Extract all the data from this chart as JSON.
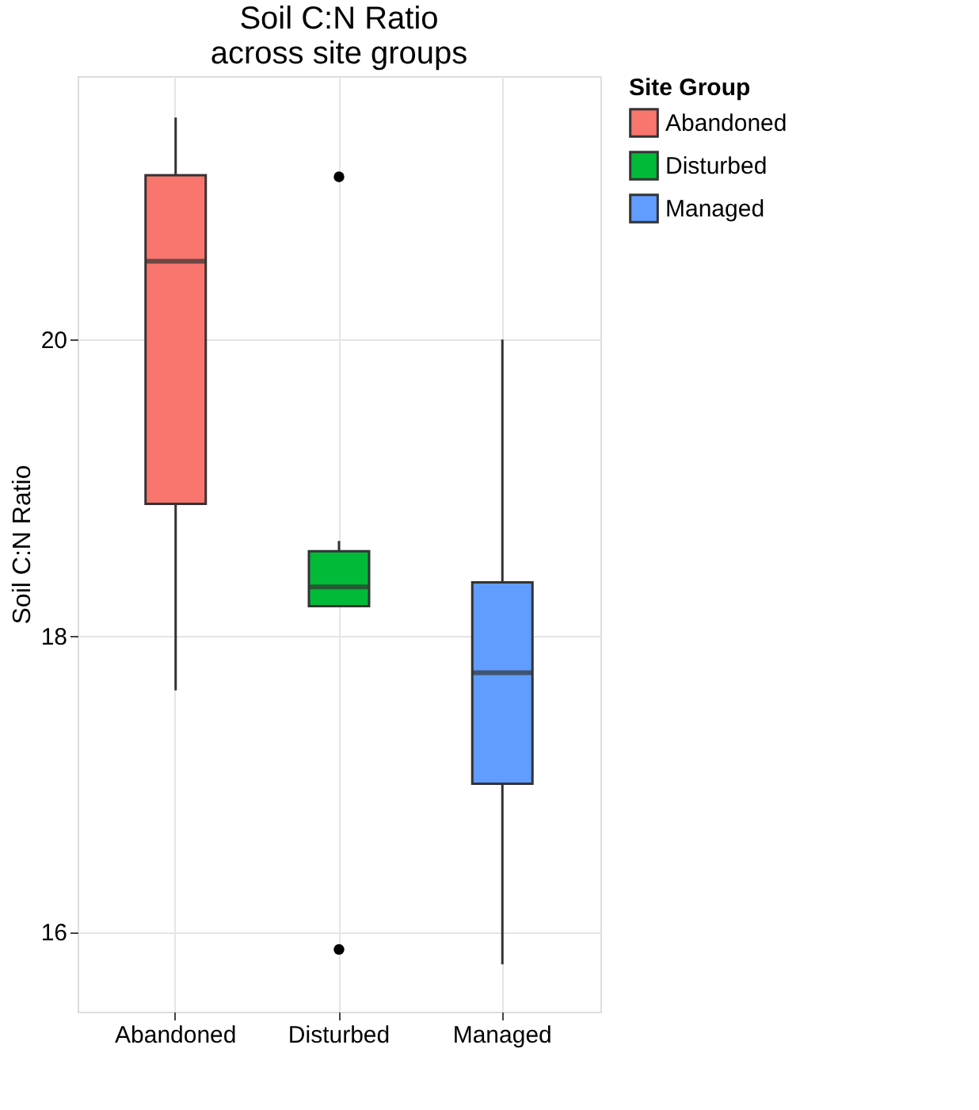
{
  "chart_data": {
    "type": "box",
    "title": "Soil C:N Ratio\nacross site groups",
    "ylabel": "Soil C:N Ratio",
    "legend_title": "Site Group",
    "categories": [
      "Abandoned",
      "Disturbed",
      "Managed"
    ],
    "series": [
      {
        "name": "Abandoned",
        "color": "#f8766d",
        "boxes": [
          {
            "low": 17.63,
            "q1": 18.89,
            "median": 20.53,
            "q3": 21.11,
            "high": 21.5
          },
          null,
          null
        ]
      },
      {
        "name": "Disturbed",
        "color": "#00ba38",
        "boxes": [
          null,
          {
            "low": 18.2,
            "q1": 18.2,
            "median": 18.33,
            "q3": 18.57,
            "high": 18.64,
            "outliers": [
              21.1,
              15.88
            ]
          },
          null
        ]
      },
      {
        "name": "Managed",
        "color": "#619cff",
        "boxes": [
          null,
          null,
          {
            "low": 15.78,
            "q1": 17.0,
            "median": 17.75,
            "q3": 18.36,
            "high": 20.0
          }
        ]
      }
    ],
    "ylim": [
      15.46,
      21.78
    ],
    "yticks": [
      16,
      18,
      20
    ],
    "grid": true,
    "legend": "right"
  }
}
